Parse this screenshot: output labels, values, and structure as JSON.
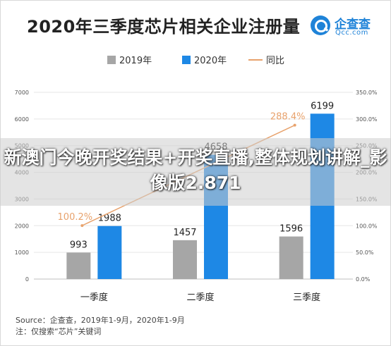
{
  "chart_data": {
    "type": "bar",
    "title": "2020年三季度芯片相关企业注册量",
    "categories": [
      "一季度",
      "二季度",
      "三季度"
    ],
    "series": [
      {
        "name": "2019年",
        "values": [
          993,
          1457,
          1596
        ],
        "color": "#a6a6a6"
      },
      {
        "name": "2020年",
        "values": [
          1988,
          4658,
          6199
        ],
        "color": "#1e88e5"
      }
    ],
    "line_series": {
      "name": "同比",
      "values": [
        100.2,
        null,
        288.4
      ],
      "labels": [
        "100.2%",
        "",
        "288.4%"
      ],
      "color": "#e8a26c",
      "axis": "right"
    },
    "y_left": {
      "min": 0,
      "max": 7000,
      "ticks": [
        "0",
        "1000",
        "2000",
        "3000",
        "4000",
        "5000",
        "6000",
        "7000"
      ]
    },
    "y_right": {
      "min": 0,
      "max": 350,
      "ticks": [
        "0.0%",
        "50.0%",
        "100.0%",
        "150.0%",
        "200.0%",
        "250.0%",
        "300.0%",
        "350.0%"
      ]
    },
    "legend_position": "top",
    "grid": true
  },
  "logo": {
    "name": "企查查",
    "sub": "Qcc.com"
  },
  "source_lines": [
    "Source：企查查，2019年1-9月，2020年1-9月",
    "注：仅搜索“芯片”关键词"
  ],
  "watermark_text": "新澳门今晚开奖结果+开奖直播,整体规划讲解_影像版2.871"
}
